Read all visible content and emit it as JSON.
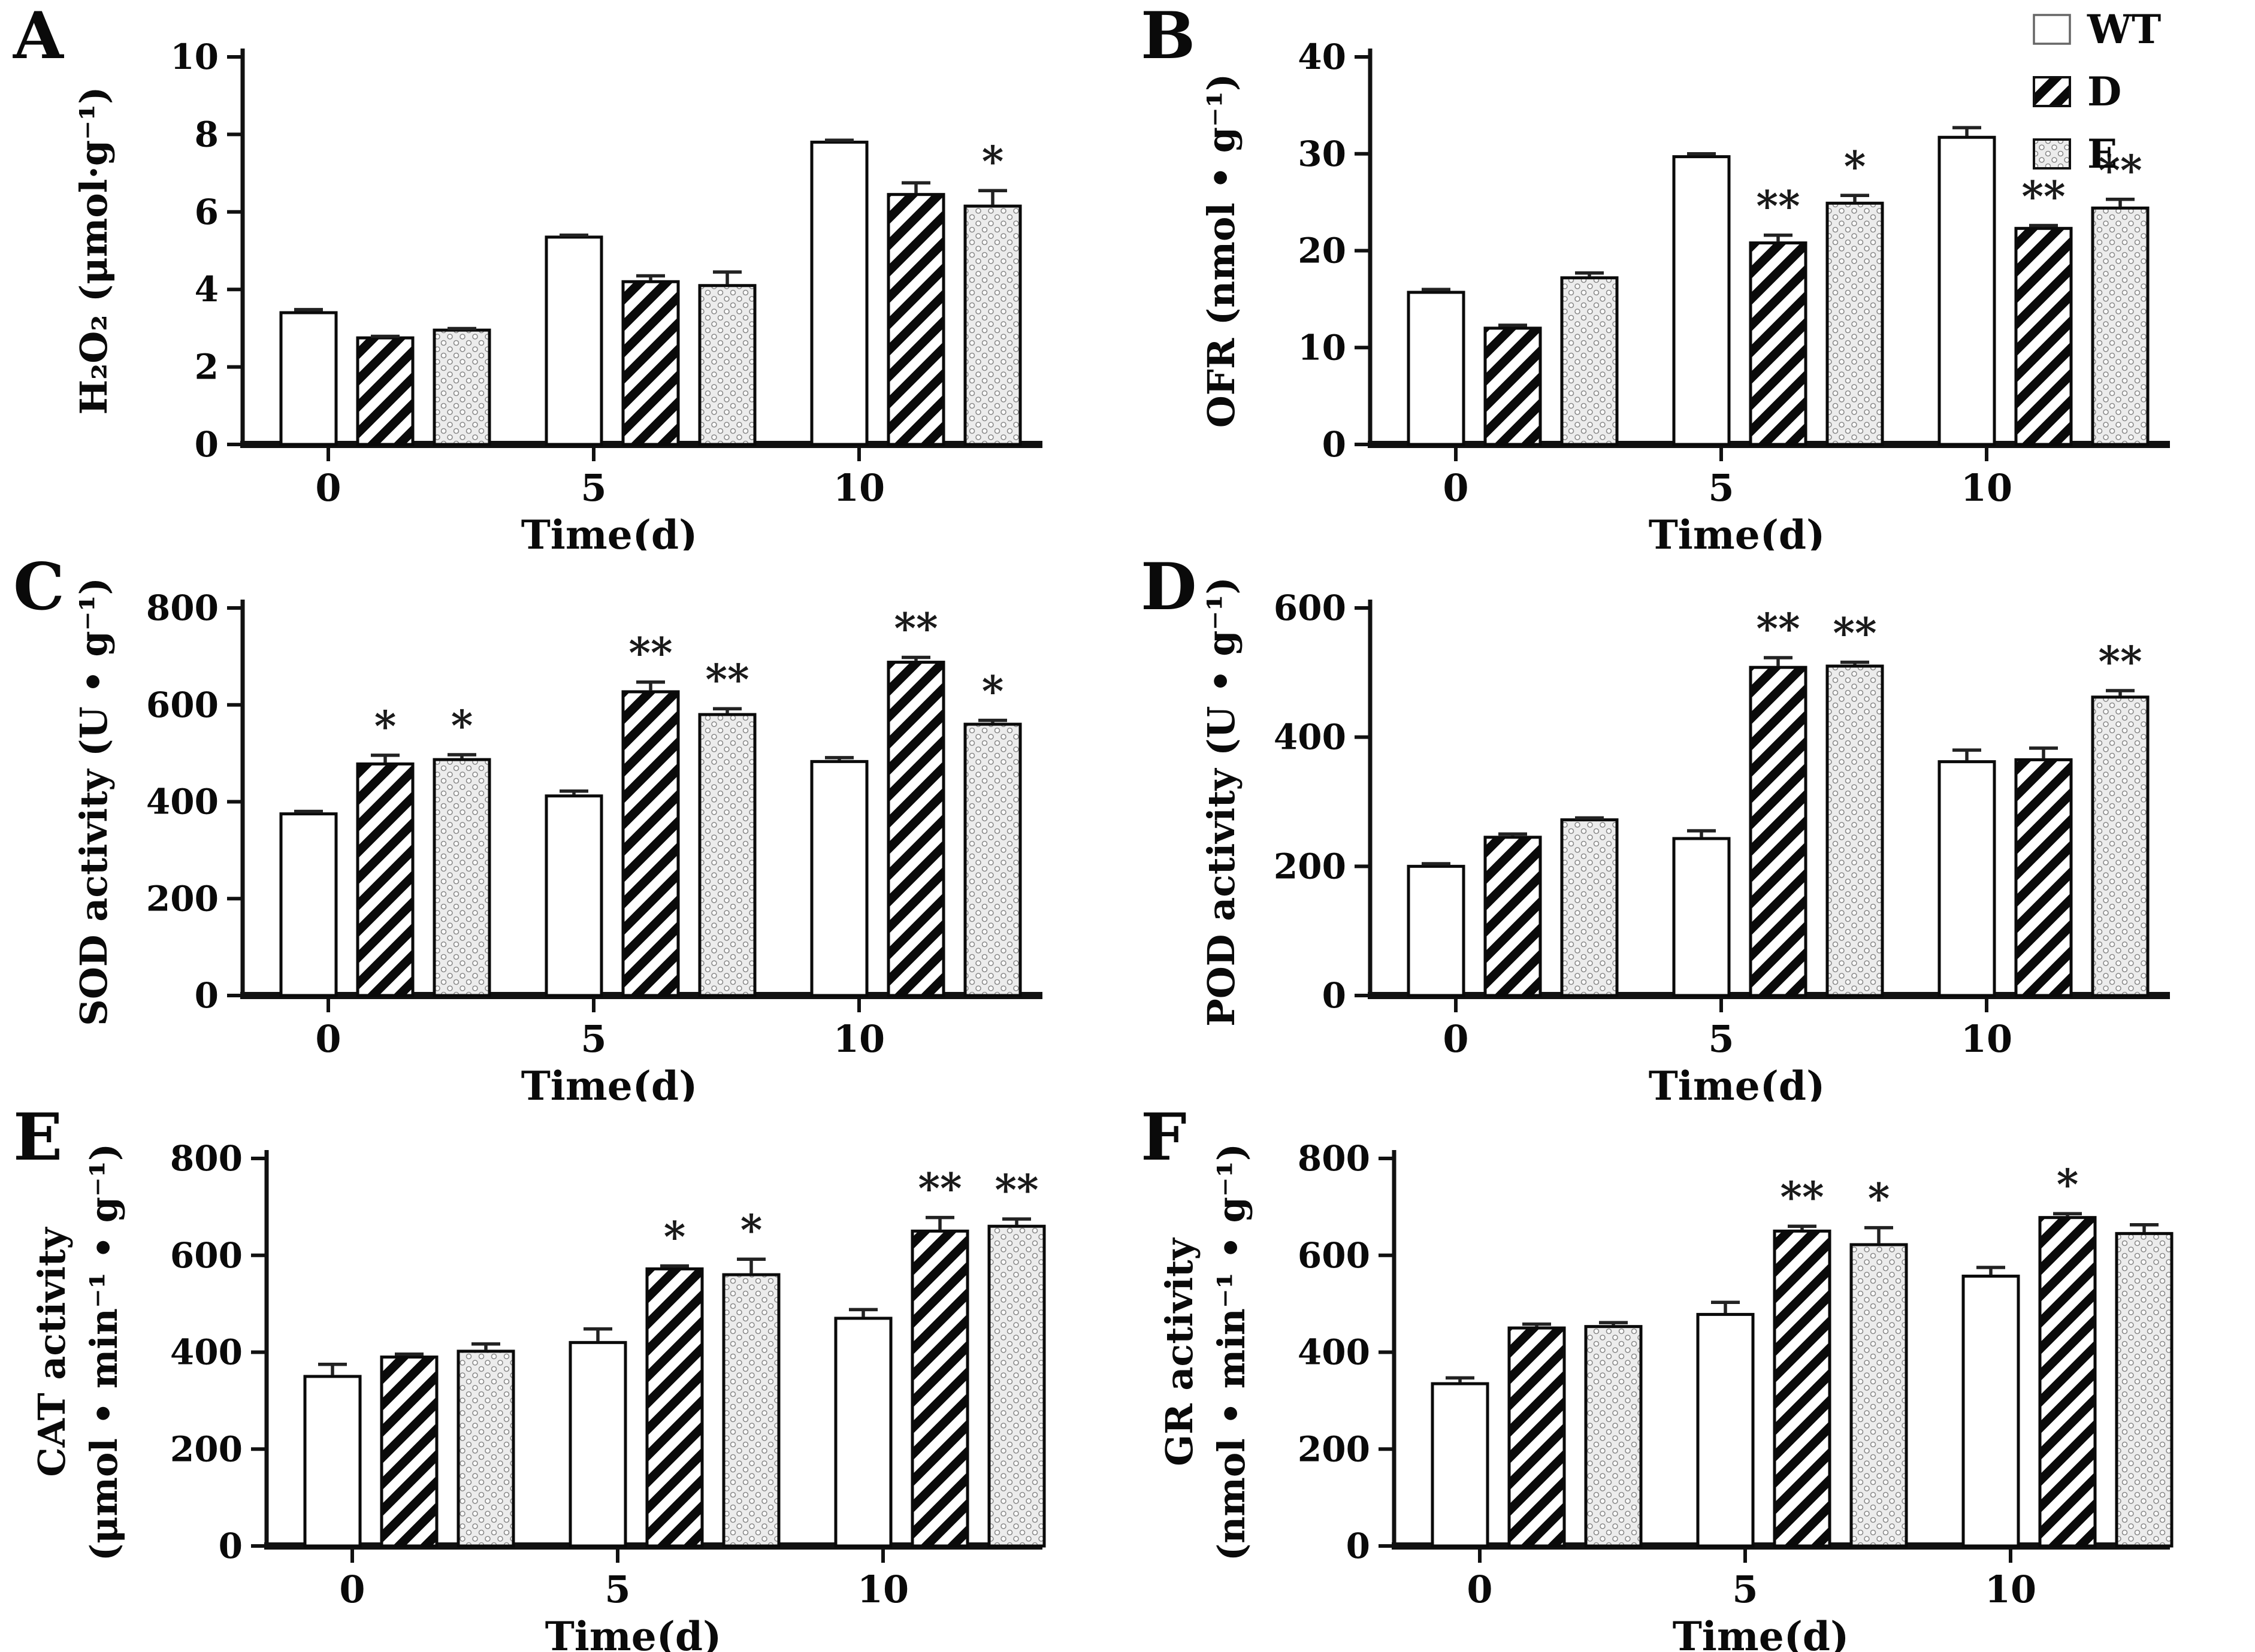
{
  "figure": {
    "background": "#ffffff",
    "panel_letters": [
      "A",
      "B",
      "C",
      "D",
      "E",
      "F"
    ]
  },
  "colors": {
    "axis": "#111111",
    "bar_stroke": "#0a0a0a",
    "error_bar": "#222222",
    "hatch_stripe": "#0a0a0a",
    "dot_fill_bg": "#ececec",
    "dot_color": "#8a8a8a",
    "text": "#0a0a0a"
  },
  "legend": {
    "position": "top-right",
    "items": [
      {
        "label": "WT",
        "pattern": "open-white"
      },
      {
        "label": "D",
        "pattern": "diagonal-hatch"
      },
      {
        "label": "E",
        "pattern": "dots"
      }
    ]
  },
  "chart_data": [
    {
      "type": "bar",
      "letter": "A",
      "ylabel_lines": [
        "H₂O₂ (μmol·g⁻¹)"
      ],
      "xlabel": "Time(d)",
      "categories": [
        "0",
        "5",
        "10"
      ],
      "ylim": [
        0,
        10
      ],
      "yticks": [
        0,
        2,
        4,
        6,
        8,
        10
      ],
      "grid": false,
      "series": [
        {
          "name": "WT",
          "values": [
            3.4,
            5.35,
            7.8
          ],
          "errors": [
            0.08,
            0.05,
            0.05
          ],
          "sig": [
            "",
            "",
            ""
          ]
        },
        {
          "name": "D",
          "values": [
            2.75,
            4.2,
            6.45
          ],
          "errors": [
            0.04,
            0.15,
            0.3
          ],
          "sig": [
            "",
            "",
            ""
          ]
        },
        {
          "name": "E",
          "values": [
            2.95,
            4.1,
            6.15
          ],
          "errors": [
            0.04,
            0.35,
            0.4
          ],
          "sig": [
            "",
            "",
            "*"
          ]
        }
      ]
    },
    {
      "type": "bar",
      "letter": "B",
      "ylabel_lines": [
        "OFR (nmol • g⁻¹)"
      ],
      "xlabel": "Time(d)",
      "categories": [
        "0",
        "5",
        "10"
      ],
      "ylim": [
        0,
        40
      ],
      "yticks": [
        0,
        10,
        20,
        30,
        40
      ],
      "grid": false,
      "series": [
        {
          "name": "WT",
          "values": [
            15.7,
            29.7,
            31.7
          ],
          "errors": [
            0.3,
            0.3,
            1.0
          ],
          "sig": [
            "",
            "",
            ""
          ]
        },
        {
          "name": "D",
          "values": [
            12.0,
            20.8,
            22.3
          ],
          "errors": [
            0.3,
            0.8,
            0.3
          ],
          "sig": [
            "",
            "**",
            "**"
          ]
        },
        {
          "name": "E",
          "values": [
            17.2,
            24.9,
            24.4
          ],
          "errors": [
            0.5,
            0.8,
            0.9
          ],
          "sig": [
            "",
            "*",
            "**"
          ]
        }
      ]
    },
    {
      "type": "bar",
      "letter": "C",
      "ylabel_lines": [
        "SOD activity (U • g⁻¹)"
      ],
      "xlabel": "Time(d)",
      "categories": [
        "0",
        "5",
        "10"
      ],
      "ylim": [
        0,
        800
      ],
      "yticks": [
        0,
        200,
        400,
        600,
        800
      ],
      "grid": false,
      "series": [
        {
          "name": "WT",
          "values": [
            375,
            412,
            483
          ],
          "errors": [
            5,
            10,
            8
          ],
          "sig": [
            "",
            "",
            ""
          ]
        },
        {
          "name": "D",
          "values": [
            478,
            627,
            688
          ],
          "errors": [
            18,
            20,
            10
          ],
          "sig": [
            "*",
            "**",
            "**"
          ]
        },
        {
          "name": "E",
          "values": [
            487,
            580,
            560
          ],
          "errors": [
            10,
            12,
            8
          ],
          "sig": [
            "*",
            "**",
            "*"
          ]
        }
      ]
    },
    {
      "type": "bar",
      "letter": "D",
      "ylabel_lines": [
        "POD activity (U • g⁻¹)"
      ],
      "xlabel": "Time(d)",
      "categories": [
        "0",
        "5",
        "10"
      ],
      "ylim": [
        0,
        600
      ],
      "yticks": [
        0,
        200,
        400,
        600
      ],
      "grid": false,
      "series": [
        {
          "name": "WT",
          "values": [
            200,
            243,
            362
          ],
          "errors": [
            4,
            12,
            18
          ],
          "sig": [
            "",
            "",
            ""
          ]
        },
        {
          "name": "D",
          "values": [
            245,
            508,
            365
          ],
          "errors": [
            5,
            15,
            18
          ],
          "sig": [
            "",
            "**",
            ""
          ]
        },
        {
          "name": "E",
          "values": [
            272,
            510,
            462
          ],
          "errors": [
            3,
            6,
            10
          ],
          "sig": [
            "",
            "**",
            "**"
          ]
        }
      ]
    },
    {
      "type": "bar",
      "letter": "E",
      "ylabel_lines": [
        "CAT activity",
        "(μmol • min⁻¹ • g⁻¹)"
      ],
      "xlabel": "Time(d)",
      "categories": [
        "0",
        "5",
        "10"
      ],
      "ylim": [
        0,
        800
      ],
      "yticks": [
        0,
        200,
        400,
        600,
        800
      ],
      "grid": false,
      "series": [
        {
          "name": "WT",
          "values": [
            350,
            420,
            470
          ],
          "errors": [
            25,
            28,
            18
          ],
          "sig": [
            "",
            "",
            ""
          ]
        },
        {
          "name": "D",
          "values": [
            390,
            572,
            650
          ],
          "errors": [
            6,
            6,
            28
          ],
          "sig": [
            "",
            "*",
            "**"
          ]
        },
        {
          "name": "E",
          "values": [
            402,
            560,
            660
          ],
          "errors": [
            15,
            32,
            15
          ],
          "sig": [
            "",
            "*",
            "**"
          ]
        }
      ]
    },
    {
      "type": "bar",
      "letter": "F",
      "ylabel_lines": [
        "GR activity",
        "(nmol • min⁻¹ • g⁻¹)"
      ],
      "xlabel": "Time(d)",
      "categories": [
        "0",
        "5",
        "10"
      ],
      "ylim": [
        0,
        800
      ],
      "yticks": [
        0,
        200,
        400,
        600,
        800
      ],
      "grid": false,
      "series": [
        {
          "name": "WT",
          "values": [
            335,
            478,
            557
          ],
          "errors": [
            12,
            25,
            18
          ],
          "sig": [
            "",
            "",
            ""
          ]
        },
        {
          "name": "D",
          "values": [
            450,
            650,
            678
          ],
          "errors": [
            8,
            10,
            8
          ],
          "sig": [
            "",
            "**",
            "*"
          ]
        },
        {
          "name": "E",
          "values": [
            453,
            622,
            645
          ],
          "errors": [
            8,
            35,
            18
          ],
          "sig": [
            "",
            "*",
            ""
          ]
        }
      ]
    }
  ]
}
